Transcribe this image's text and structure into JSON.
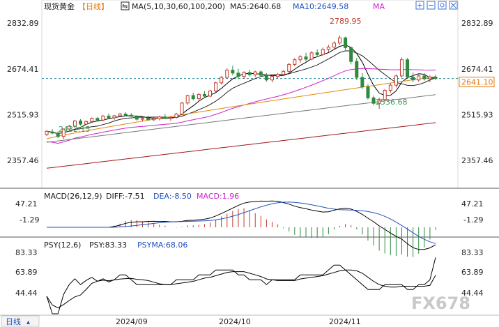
{
  "header": {
    "instrument": "现货黄金",
    "period": "【日线】",
    "ma_label": "MA(5,10,30,60,100,200)",
    "ma5_label": "MA5:2640.68",
    "ma10_label": "MA10:2649.58",
    "ma_more": "MA",
    "toolbar_icons": [
      "zoom-in-icon",
      "zoom-out-icon",
      "settings-icon",
      "close-icon"
    ]
  },
  "price_axis": {
    "ticks": [
      "2832.89",
      "2674.41",
      "2515.93",
      "2357.46"
    ],
    "current_label": "2641.10",
    "high_label": "2789.95",
    "low_label_1": "2432.15",
    "low_label_2": "2536.68"
  },
  "macd": {
    "title": "MACD(26,12,9)",
    "diff_label": "DIFF:-7.51",
    "dea_label": "DEA:-8.50",
    "macd_label": "MACD:1.96",
    "ticks": [
      "47.21",
      "-1.29"
    ]
  },
  "psy": {
    "title": "PSY(12,6)",
    "psy_label": "PSY:83.33",
    "psyma_label": "PSYMA:68.06",
    "ticks": [
      "83.33",
      "63.89",
      "44.44"
    ]
  },
  "footer": {
    "period_button": "日线",
    "dates": [
      "2024/09",
      "2024/10",
      "2024/11"
    ],
    "watermark": "FX678"
  },
  "colors": {
    "up": "#c0392b",
    "down": "#2e8b3e",
    "ma5": "#000000",
    "ma10": "#222222",
    "ma30": "#cc22cc",
    "ma60": "#e08a10",
    "ma100": "#777777",
    "ma200": "#a01818",
    "accent_blue": "#1f4fbf",
    "label_red": "#c0392b",
    "label_green": "#3a9b5a"
  },
  "chart_data": {
    "type": "candlestick",
    "title": "现货黄金",
    "ylim": [
      2280,
      2860
    ],
    "y_ticks": [
      2832.89,
      2674.41,
      2515.93,
      2357.46
    ],
    "x_ticks": [
      "2024/09",
      "2024/10",
      "2024/11"
    ],
    "current_price": 2641.1,
    "annotations": [
      {
        "label": "2789.95",
        "value": 2789.95
      },
      {
        "label": "2432.15",
        "value": 2432.15
      },
      {
        "label": "2536.68",
        "value": 2536.68
      }
    ],
    "ohlc": [
      [
        2447,
        2462,
        2442,
        2458
      ],
      [
        2456,
        2466,
        2448,
        2452
      ],
      [
        2452,
        2458,
        2435,
        2440
      ],
      [
        2440,
        2468,
        2432,
        2466
      ],
      [
        2466,
        2480,
        2460,
        2476
      ],
      [
        2476,
        2498,
        2470,
        2494
      ],
      [
        2494,
        2500,
        2478,
        2483
      ],
      [
        2483,
        2496,
        2480,
        2492
      ],
      [
        2492,
        2506,
        2488,
        2503
      ],
      [
        2503,
        2508,
        2494,
        2497
      ],
      [
        2497,
        2515,
        2493,
        2511
      ],
      [
        2511,
        2520,
        2500,
        2505
      ],
      [
        2505,
        2515,
        2498,
        2512
      ],
      [
        2512,
        2522,
        2508,
        2518
      ],
      [
        2518,
        2524,
        2510,
        2514
      ],
      [
        2514,
        2521,
        2508,
        2510
      ],
      [
        2510,
        2514,
        2495,
        2500
      ],
      [
        2500,
        2508,
        2492,
        2504
      ],
      [
        2504,
        2512,
        2496,
        2498
      ],
      [
        2498,
        2506,
        2494,
        2502
      ],
      [
        2502,
        2512,
        2496,
        2508
      ],
      [
        2508,
        2518,
        2500,
        2503
      ],
      [
        2503,
        2510,
        2494,
        2506
      ],
      [
        2506,
        2522,
        2502,
        2518
      ],
      [
        2518,
        2560,
        2514,
        2556
      ],
      [
        2556,
        2585,
        2550,
        2582
      ],
      [
        2582,
        2592,
        2565,
        2571
      ],
      [
        2571,
        2590,
        2566,
        2586
      ],
      [
        2586,
        2598,
        2574,
        2580
      ],
      [
        2580,
        2602,
        2576,
        2598
      ],
      [
        2598,
        2630,
        2594,
        2626
      ],
      [
        2626,
        2650,
        2620,
        2645
      ],
      [
        2645,
        2676,
        2640,
        2670
      ],
      [
        2670,
        2685,
        2652,
        2660
      ],
      [
        2660,
        2675,
        2640,
        2648
      ],
      [
        2648,
        2666,
        2640,
        2662
      ],
      [
        2662,
        2672,
        2648,
        2654
      ],
      [
        2654,
        2668,
        2646,
        2664
      ],
      [
        2664,
        2670,
        2648,
        2652
      ],
      [
        2652,
        2660,
        2630,
        2636
      ],
      [
        2636,
        2652,
        2628,
        2648
      ],
      [
        2648,
        2660,
        2640,
        2655
      ],
      [
        2655,
        2670,
        2650,
        2666
      ],
      [
        2666,
        2695,
        2662,
        2690
      ],
      [
        2690,
        2712,
        2684,
        2706
      ],
      [
        2706,
        2722,
        2696,
        2716
      ],
      [
        2716,
        2730,
        2700,
        2708
      ],
      [
        2708,
        2736,
        2704,
        2730
      ],
      [
        2730,
        2742,
        2716,
        2724
      ],
      [
        2724,
        2748,
        2720,
        2742
      ],
      [
        2742,
        2758,
        2732,
        2750
      ],
      [
        2750,
        2770,
        2744,
        2764
      ],
      [
        2764,
        2790,
        2758,
        2782
      ],
      [
        2782,
        2786,
        2740,
        2748
      ],
      [
        2748,
        2752,
        2690,
        2700
      ],
      [
        2700,
        2712,
        2636,
        2645
      ],
      [
        2645,
        2660,
        2605,
        2612
      ],
      [
        2612,
        2622,
        2568,
        2574
      ],
      [
        2574,
        2582,
        2548,
        2555
      ],
      [
        2555,
        2575,
        2536,
        2568
      ],
      [
        2568,
        2605,
        2562,
        2600
      ],
      [
        2600,
        2625,
        2592,
        2618
      ],
      [
        2618,
        2655,
        2610,
        2650
      ],
      [
        2650,
        2714,
        2644,
        2706
      ],
      [
        2706,
        2712,
        2640,
        2646
      ],
      [
        2646,
        2662,
        2628,
        2636
      ],
      [
        2636,
        2654,
        2630,
        2650
      ],
      [
        2650,
        2660,
        2634,
        2640
      ],
      [
        2640,
        2652,
        2628,
        2646
      ],
      [
        2646,
        2654,
        2636,
        2641
      ]
    ],
    "macd": {
      "diff": -7.51,
      "dea": -8.5,
      "macd": 1.96,
      "ylim": [
        -20,
        60
      ]
    },
    "psy": {
      "psy": 83.33,
      "psyma": 68.06,
      "ylim": [
        35,
        90
      ]
    }
  }
}
